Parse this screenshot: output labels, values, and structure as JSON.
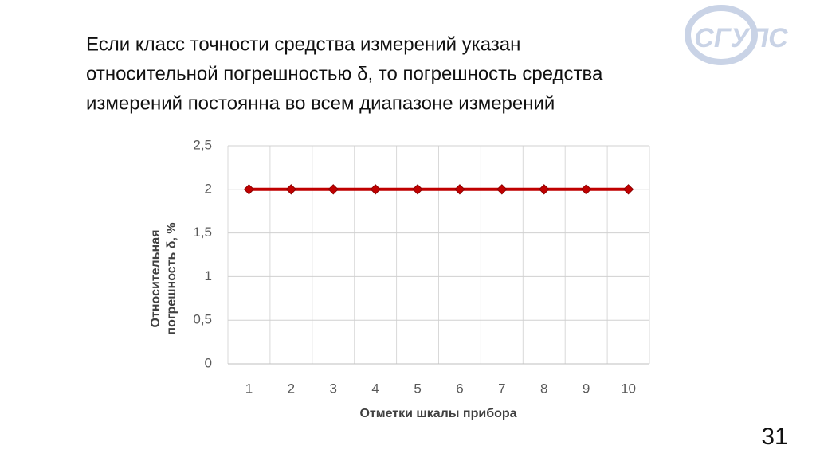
{
  "slide": {
    "heading": [
      "Если класс точности средства измерений указан",
      "относительной погрешностью δ, то погрешность средства",
      "измерений постоянна во всем диапазоне измерений"
    ],
    "logo": "СГУПС",
    "page_number": "31"
  },
  "chart_data": {
    "type": "line",
    "ylabel": [
      "Относительная",
      "погрешность δ, %"
    ],
    "xlabel": "Отметки шкалы прибора",
    "categories": [
      "1",
      "2",
      "3",
      "4",
      "5",
      "6",
      "7",
      "8",
      "9",
      "10"
    ],
    "values": [
      2,
      2,
      2,
      2,
      2,
      2,
      2,
      2,
      2,
      2
    ],
    "color": "#c00000",
    "ylim": [
      0,
      2.5
    ],
    "yticks": [
      0,
      {
        "value": 0.5,
        "label": "0,5"
      },
      1,
      {
        "value": 1.5,
        "label": "1,5"
      },
      2,
      {
        "value": 2.5,
        "label": "2,5"
      }
    ],
    "grid": true
  }
}
